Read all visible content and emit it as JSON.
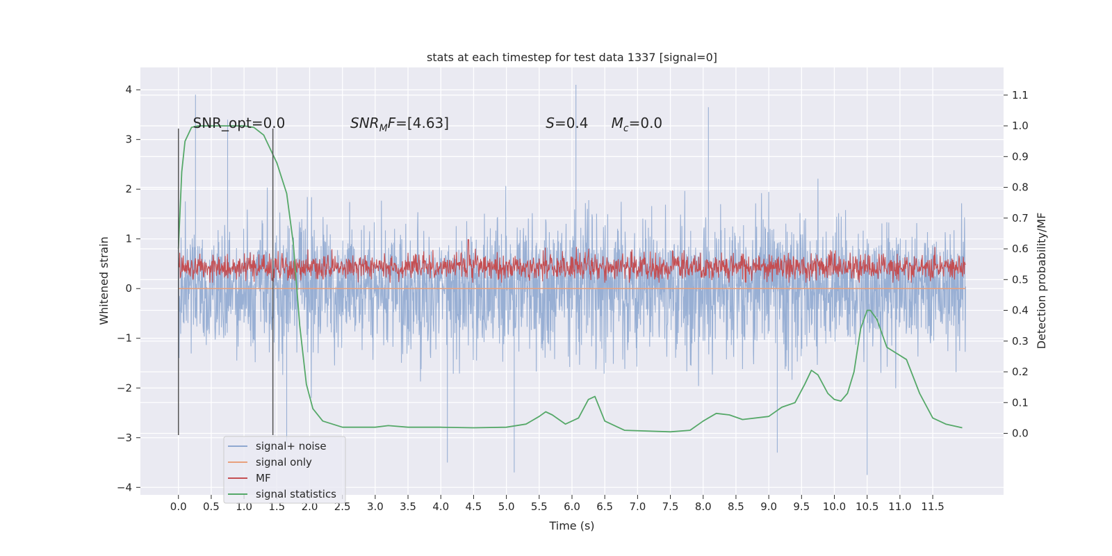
{
  "chart_data": {
    "type": "line",
    "title": "stats at each timestep for test data 1337 [signal=0]",
    "xlabel": "Time (s)",
    "ylabel": "Whitened strain",
    "y2label": "Detection probability/MF",
    "xlim": [
      -0.58,
      12.58
    ],
    "ylim": [
      -4.15,
      4.45
    ],
    "y2lim": [
      -0.2,
      1.19
    ],
    "xticks": [
      "0.0",
      "0.5",
      "1.0",
      "1.5",
      "2.0",
      "2.5",
      "3.0",
      "3.5",
      "4.0",
      "4.5",
      "5.0",
      "5.5",
      "6.0",
      "6.5",
      "7.0",
      "7.5",
      "8.0",
      "8.5",
      "9.0",
      "9.5",
      "10.0",
      "10.5",
      "11.0",
      "11.5"
    ],
    "yticks": [
      "4",
      "3",
      "2",
      "1",
      "0",
      "−1",
      "−2",
      "−3",
      "−4"
    ],
    "y2ticks": [
      "1.1",
      "1.0",
      "0.9",
      "0.8",
      "0.7",
      "0.6",
      "0.5",
      "0.4",
      "0.3",
      "0.2",
      "0.1",
      "0.0"
    ],
    "grid": true,
    "legend_position": "lower-left",
    "annotations": [
      {
        "text": "SNR_opt=0.0",
        "x": 0.22
      },
      {
        "text": "SNR",
        "sub": "M",
        "tail": "F=[4.63]",
        "italic": true,
        "x": 2.62
      },
      {
        "text": "S",
        "tail": "=0.4",
        "italic": true,
        "x": 5.6
      },
      {
        "text": "M",
        "sub": "c",
        "tail": "=0.0",
        "italic": true,
        "x": 6.6
      }
    ],
    "vlines": [
      0.0,
      1.44
    ],
    "series": [
      {
        "name": "signal+ noise",
        "color": "#8fa8d0",
        "axis": "left",
        "description": "dense noise trace",
        "x_range": [
          0.0,
          12.0
        ],
        "envelope": {
          "upper": 2.8,
          "lower": -2.7
        },
        "outliers": [
          [
            0.26,
            3.9
          ],
          [
            0.75,
            3.4
          ],
          [
            6.06,
            4.1
          ],
          [
            8.08,
            3.65
          ],
          [
            1.65,
            -3.1
          ],
          [
            4.1,
            -3.5
          ],
          [
            10.5,
            -3.75
          ],
          [
            5.12,
            -3.7
          ],
          [
            9.13,
            -3.3
          ]
        ]
      },
      {
        "name": "signal only",
        "color": "#e8a07c",
        "axis": "left",
        "x_range": [
          0.0,
          12.0
        ],
        "values_const": 0.0
      },
      {
        "name": "MF",
        "color": "#c44e52",
        "axis": "right",
        "x_range": [
          0.0,
          12.0
        ],
        "band": [
          0.5,
          0.58
        ]
      },
      {
        "name": "signal statistics",
        "color": "#55a868",
        "axis": "right",
        "x": [
          0.0,
          0.05,
          0.1,
          0.2,
          0.3,
          0.5,
          0.8,
          1.0,
          1.15,
          1.3,
          1.5,
          1.65,
          1.75,
          1.85,
          1.95,
          2.05,
          2.2,
          2.5,
          3.0,
          3.2,
          3.5,
          4.0,
          4.5,
          5.0,
          5.3,
          5.5,
          5.6,
          5.7,
          5.9,
          6.1,
          6.25,
          6.35,
          6.5,
          6.8,
          7.5,
          7.8,
          8.0,
          8.2,
          8.4,
          8.6,
          9.0,
          9.2,
          9.4,
          9.55,
          9.65,
          9.75,
          9.9,
          10.0,
          10.1,
          10.2,
          10.3,
          10.4,
          10.5,
          10.55,
          10.65,
          10.8,
          10.95,
          11.1,
          11.3,
          11.5,
          11.7,
          11.95
        ],
        "values": [
          0.6,
          0.85,
          0.95,
          0.995,
          1.0,
          1.0,
          1.0,
          1.0,
          0.995,
          0.97,
          0.88,
          0.78,
          0.62,
          0.35,
          0.16,
          0.08,
          0.04,
          0.02,
          0.02,
          0.025,
          0.02,
          0.02,
          0.018,
          0.02,
          0.03,
          0.055,
          0.07,
          0.06,
          0.03,
          0.05,
          0.11,
          0.12,
          0.04,
          0.01,
          0.005,
          0.01,
          0.04,
          0.065,
          0.06,
          0.045,
          0.055,
          0.085,
          0.1,
          0.16,
          0.205,
          0.19,
          0.13,
          0.11,
          0.105,
          0.13,
          0.2,
          0.34,
          0.4,
          0.4,
          0.37,
          0.28,
          0.26,
          0.24,
          0.13,
          0.05,
          0.03,
          0.018
        ]
      }
    ]
  }
}
